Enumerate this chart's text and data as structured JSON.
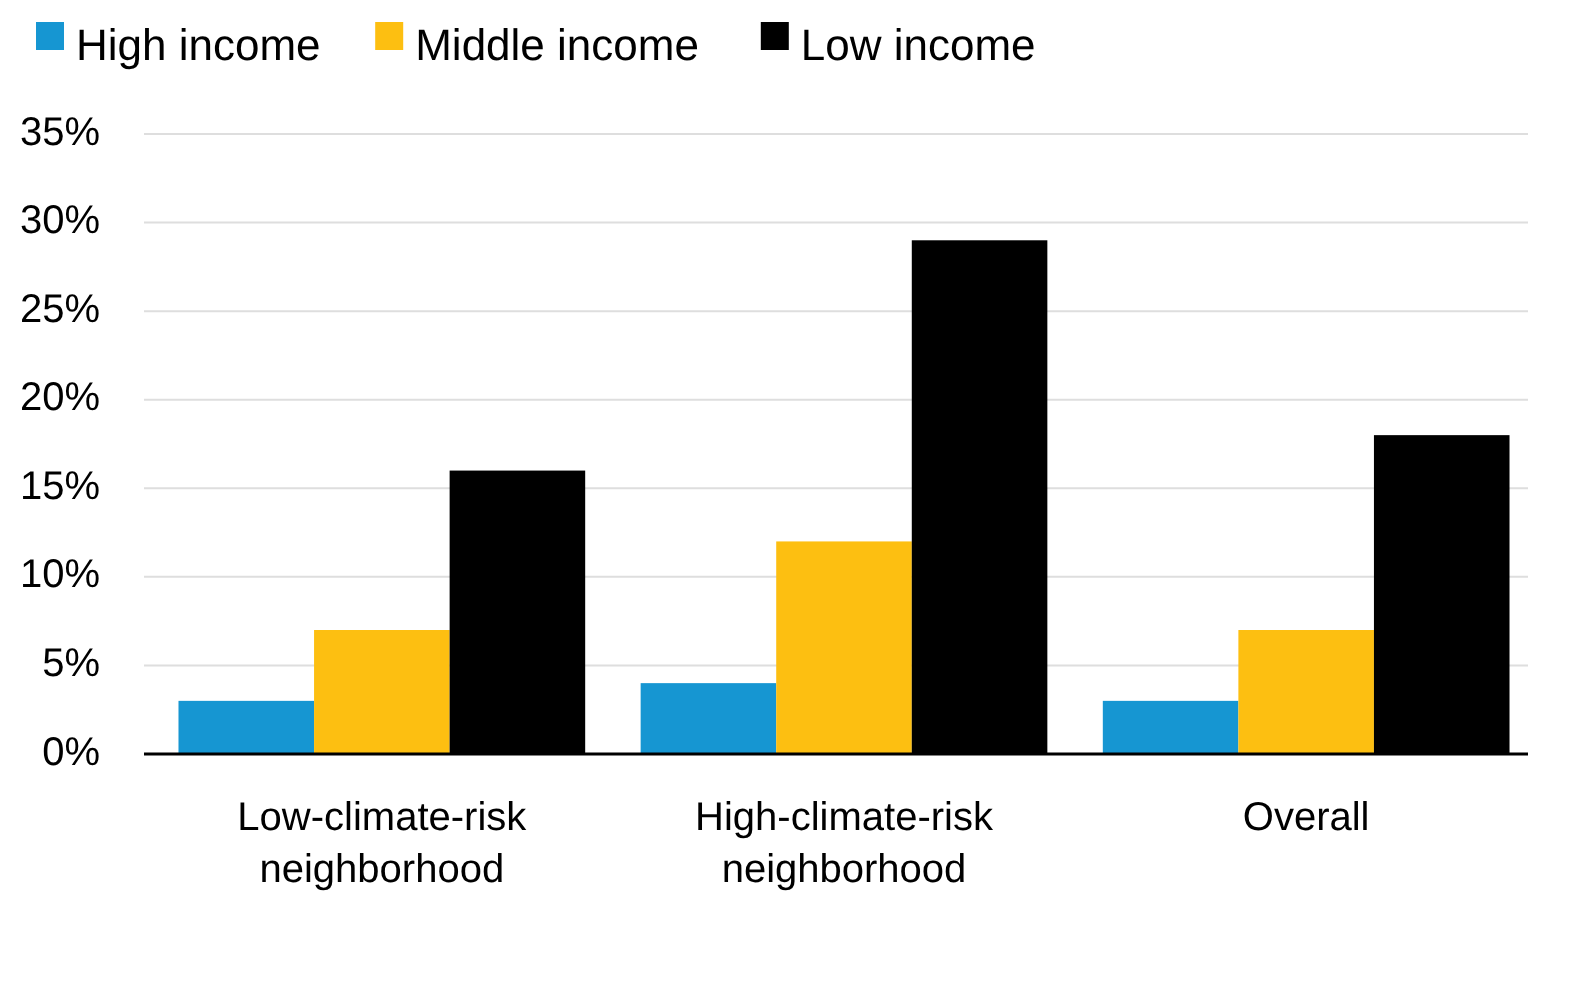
{
  "chart_data": {
    "type": "bar",
    "categories": [
      "Low-climate-risk neighborhood",
      "High-climate-risk neighborhood",
      "Overall"
    ],
    "series": [
      {
        "name": "High income",
        "color": "#1696d2",
        "values": [
          3,
          4,
          3
        ]
      },
      {
        "name": "Middle income",
        "color": "#fdbf11",
        "values": [
          7,
          12,
          7
        ]
      },
      {
        "name": "Low income",
        "color": "#000000",
        "values": [
          16,
          29,
          18
        ]
      }
    ],
    "ylim": [
      0,
      35
    ],
    "yticks": [
      {
        "value": 0,
        "label": "0%"
      },
      {
        "value": 5,
        "label": "5%"
      },
      {
        "value": 10,
        "label": "10%"
      },
      {
        "value": 15,
        "label": "15%"
      },
      {
        "value": 20,
        "label": "20%"
      },
      {
        "value": 25,
        "label": "25%"
      },
      {
        "value": 30,
        "label": "30%"
      },
      {
        "value": 35,
        "label": "35%"
      }
    ],
    "grid": "y",
    "legend": "top left"
  }
}
